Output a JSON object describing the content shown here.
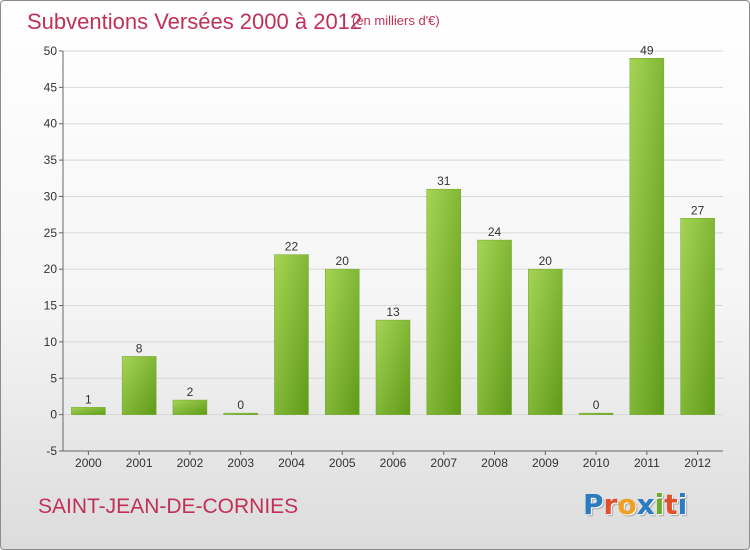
{
  "header": {
    "title": "Subventions Versées 2000 à 2012",
    "unit_note": "(en milliers d'€)"
  },
  "footer": {
    "commune": "SAINT-JEAN-DE-CORNIES",
    "logo_text": "Proxiti",
    "logo_letters": [
      {
        "ch": "P",
        "color": "#2a7bc0"
      },
      {
        "ch": "r",
        "color": "#e0502a"
      },
      {
        "ch": "o",
        "color": "#f0a020"
      },
      {
        "ch": "x",
        "color": "#2a7bc0"
      },
      {
        "ch": "i",
        "color": "#6aab2a"
      },
      {
        "ch": "t",
        "color": "#e0502a"
      },
      {
        "ch": "i",
        "color": "#2a7bc0"
      }
    ]
  },
  "colors": {
    "accent": "#c0305a",
    "bar_light": "#9ccc4a",
    "bar_dark": "#5f9a18",
    "grid": "#d8d8d8",
    "axis": "#666666"
  },
  "chart_data": {
    "type": "bar",
    "title": "Subventions Versées 2000 à 2012",
    "subtitle": "(en milliers d'€)",
    "xlabel": "",
    "ylabel": "",
    "categories": [
      "2000",
      "2001",
      "2002",
      "2003",
      "2004",
      "2005",
      "2006",
      "2007",
      "2008",
      "2009",
      "2010",
      "2011",
      "2012"
    ],
    "values": [
      1,
      8,
      2,
      0,
      22,
      20,
      13,
      31,
      24,
      20,
      0,
      49,
      27
    ],
    "ylim": [
      -5,
      50
    ],
    "yticks": [
      -5,
      0,
      5,
      10,
      15,
      20,
      25,
      30,
      35,
      40,
      45,
      50
    ],
    "grid": true,
    "legend": "none"
  }
}
